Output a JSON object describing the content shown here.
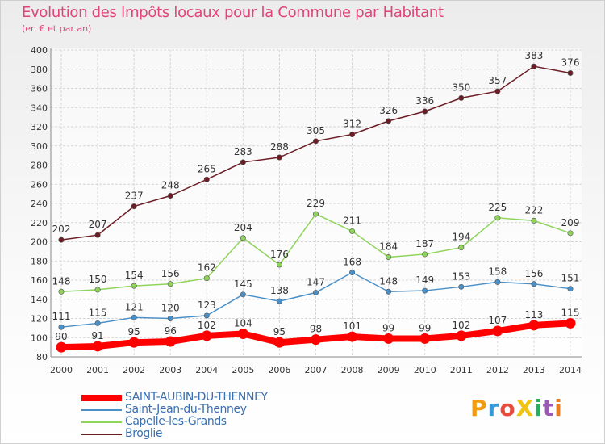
{
  "title": "Evolution des Impôts locaux pour la Commune par Habitant",
  "subtitle": "(en € et par an)",
  "logo": {
    "text": "ProXiti",
    "colors": [
      "#f39c12",
      "#3498db",
      "#e74c3c",
      "#f1c40f",
      "#27ae60",
      "#9b59b6",
      "#e67e22"
    ]
  },
  "chart_data": {
    "type": "line",
    "x": [
      2000,
      2001,
      2002,
      2003,
      2004,
      2005,
      2006,
      2007,
      2008,
      2009,
      2010,
      2011,
      2012,
      2013,
      2014
    ],
    "ylim": [
      80,
      400
    ],
    "yticks": [
      80,
      100,
      120,
      140,
      160,
      180,
      200,
      220,
      240,
      260,
      280,
      300,
      320,
      340,
      360,
      380,
      400
    ],
    "grid": true,
    "legend_position": "bottom-left",
    "series": [
      {
        "name": "SAINT-AUBIN-DU-THENNEY",
        "color": "#ff0000",
        "emphasis": true,
        "values": [
          90,
          91,
          95,
          96,
          102,
          104,
          95,
          98,
          101,
          99,
          99,
          102,
          107,
          113,
          115
        ]
      },
      {
        "name": "Saint-Jean-du-Thenney",
        "color": "#4a90c8",
        "emphasis": false,
        "values": [
          111,
          115,
          121,
          120,
          123,
          145,
          138,
          147,
          168,
          148,
          149,
          153,
          158,
          156,
          151
        ]
      },
      {
        "name": "Capelle-les-Grands",
        "color": "#8fd45a",
        "emphasis": false,
        "values": [
          148,
          150,
          154,
          156,
          162,
          204,
          176,
          229,
          211,
          184,
          187,
          194,
          225,
          222,
          209
        ]
      },
      {
        "name": "Broglie",
        "color": "#6b1c24",
        "emphasis": false,
        "values": [
          202,
          207,
          237,
          248,
          265,
          283,
          288,
          305,
          312,
          326,
          336,
          350,
          357,
          383,
          376
        ]
      }
    ]
  }
}
